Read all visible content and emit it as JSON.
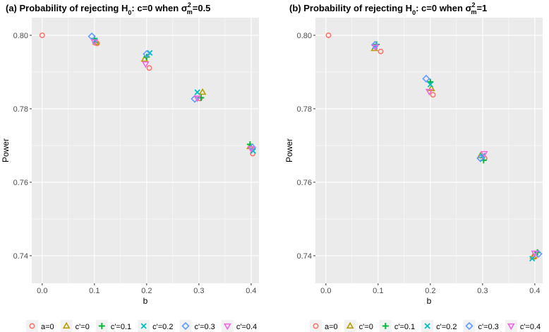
{
  "figure": {
    "legend_position": "bottom",
    "series_meta": [
      {
        "key": "a0",
        "label": "a=0",
        "color": "#F8766D",
        "shape": "circle"
      },
      {
        "key": "c0",
        "label": "c'=0",
        "color": "#B79F00",
        "shape": "triangle"
      },
      {
        "key": "c01",
        "label": "c'=0.1",
        "color": "#00BA38",
        "shape": "plus"
      },
      {
        "key": "c02",
        "label": "c'=0.2",
        "color": "#00BFC4",
        "shape": "cross"
      },
      {
        "key": "c03",
        "label": "c'=0.3",
        "color": "#619CFF",
        "shape": "diamond"
      },
      {
        "key": "c04",
        "label": "c'=0.4",
        "color": "#F564E3",
        "shape": "triangle-down"
      }
    ]
  },
  "chart_data": [
    {
      "type": "scatter",
      "title_prefix": "(a) Probability of rejecting H",
      "title_sub0": "0",
      "title_mid": ":  c=0 when σ",
      "title_sup": "2",
      "title_subm": "m",
      "title_suffix": "=0.5",
      "xlabel": "b",
      "ylabel": "Power",
      "xlim": [
        -0.02,
        0.415
      ],
      "ylim": [
        0.7325,
        0.8048
      ],
      "xticks": [
        0.0,
        0.1,
        0.2,
        0.3,
        0.4
      ],
      "xtick_labels": [
        "0.0",
        "0.1",
        "0.2",
        "0.3",
        "0.4"
      ],
      "yticks": [
        0.74,
        0.76,
        0.78,
        0.8
      ],
      "ytick_labels": [
        "0.74",
        "0.76",
        "0.78",
        "0.80"
      ],
      "series": [
        {
          "name": "a=0",
          "x": [
            0.0,
            0.105,
            0.205,
            0.302,
            0.403
          ],
          "y": [
            0.8,
            0.7978,
            0.7911,
            0.7828,
            0.7678
          ]
        },
        {
          "name": "c'=0",
          "x": [
            0.103,
            0.196,
            0.307,
            0.398
          ],
          "y": [
            0.7981,
            0.7935,
            0.7845,
            0.7697
          ]
        },
        {
          "name": "c'=0.1",
          "x": [
            0.1,
            0.2,
            0.304,
            0.398
          ],
          "y": [
            0.7991,
            0.7941,
            0.783,
            0.7703
          ]
        },
        {
          "name": "c'=0.2",
          "x": [
            0.101,
            0.206,
            0.297,
            0.404
          ],
          "y": [
            0.7985,
            0.7952,
            0.7845,
            0.7685
          ]
        },
        {
          "name": "c'=0.3",
          "x": [
            0.095,
            0.2,
            0.292,
            0.402
          ],
          "y": [
            0.7997,
            0.7949,
            0.7827,
            0.7695
          ]
        },
        {
          "name": "c'=0.4",
          "x": [
            0.1,
            0.198,
            0.297,
            0.4
          ],
          "y": [
            0.7982,
            0.7922,
            0.7829,
            0.7691
          ]
        }
      ]
    },
    {
      "type": "scatter",
      "title_prefix": "(b) Probability of rejecting H",
      "title_sub0": "0",
      "title_mid": ":  c=0 when σ",
      "title_sup": "2",
      "title_subm": "m",
      "title_suffix": "=1",
      "xlabel": "b",
      "ylabel": "Power",
      "xlim": [
        -0.02,
        0.415
      ],
      "ylim": [
        0.7325,
        0.8048
      ],
      "xticks": [
        0.0,
        0.1,
        0.2,
        0.3,
        0.4
      ],
      "xtick_labels": [
        "0.0",
        "0.1",
        "0.2",
        "0.3",
        "0.4"
      ],
      "yticks": [
        0.74,
        0.76,
        0.78,
        0.8
      ],
      "ytick_labels": [
        "0.74",
        "0.76",
        "0.78",
        "0.80"
      ],
      "series": [
        {
          "name": "a=0",
          "x": [
            0.005,
            0.105,
            0.205,
            0.304,
            0.4
          ],
          "y": [
            0.8,
            0.7956,
            0.7838,
            0.7665,
            0.7397
          ]
        },
        {
          "name": "c'=0",
          "x": [
            0.093,
            0.202,
            0.296,
            0.397
          ],
          "y": [
            0.7964,
            0.7855,
            0.7672,
            0.7398
          ]
        },
        {
          "name": "c'=0.1",
          "x": [
            0.097,
            0.2,
            0.302,
            0.405
          ],
          "y": [
            0.7975,
            0.7873,
            0.766,
            0.7409
          ]
        },
        {
          "name": "c'=0.2",
          "x": [
            0.094,
            0.2,
            0.3,
            0.395
          ],
          "y": [
            0.797,
            0.7866,
            0.7672,
            0.7392
          ]
        },
        {
          "name": "c'=0.3",
          "x": [
            0.094,
            0.192,
            0.296,
            0.407
          ],
          "y": [
            0.7974,
            0.7882,
            0.7665,
            0.7405
          ]
        },
        {
          "name": "c'=0.4",
          "x": [
            0.095,
            0.198,
            0.303,
            0.4
          ],
          "y": [
            0.7968,
            0.7847,
            0.7678,
            0.7407
          ]
        }
      ]
    }
  ]
}
